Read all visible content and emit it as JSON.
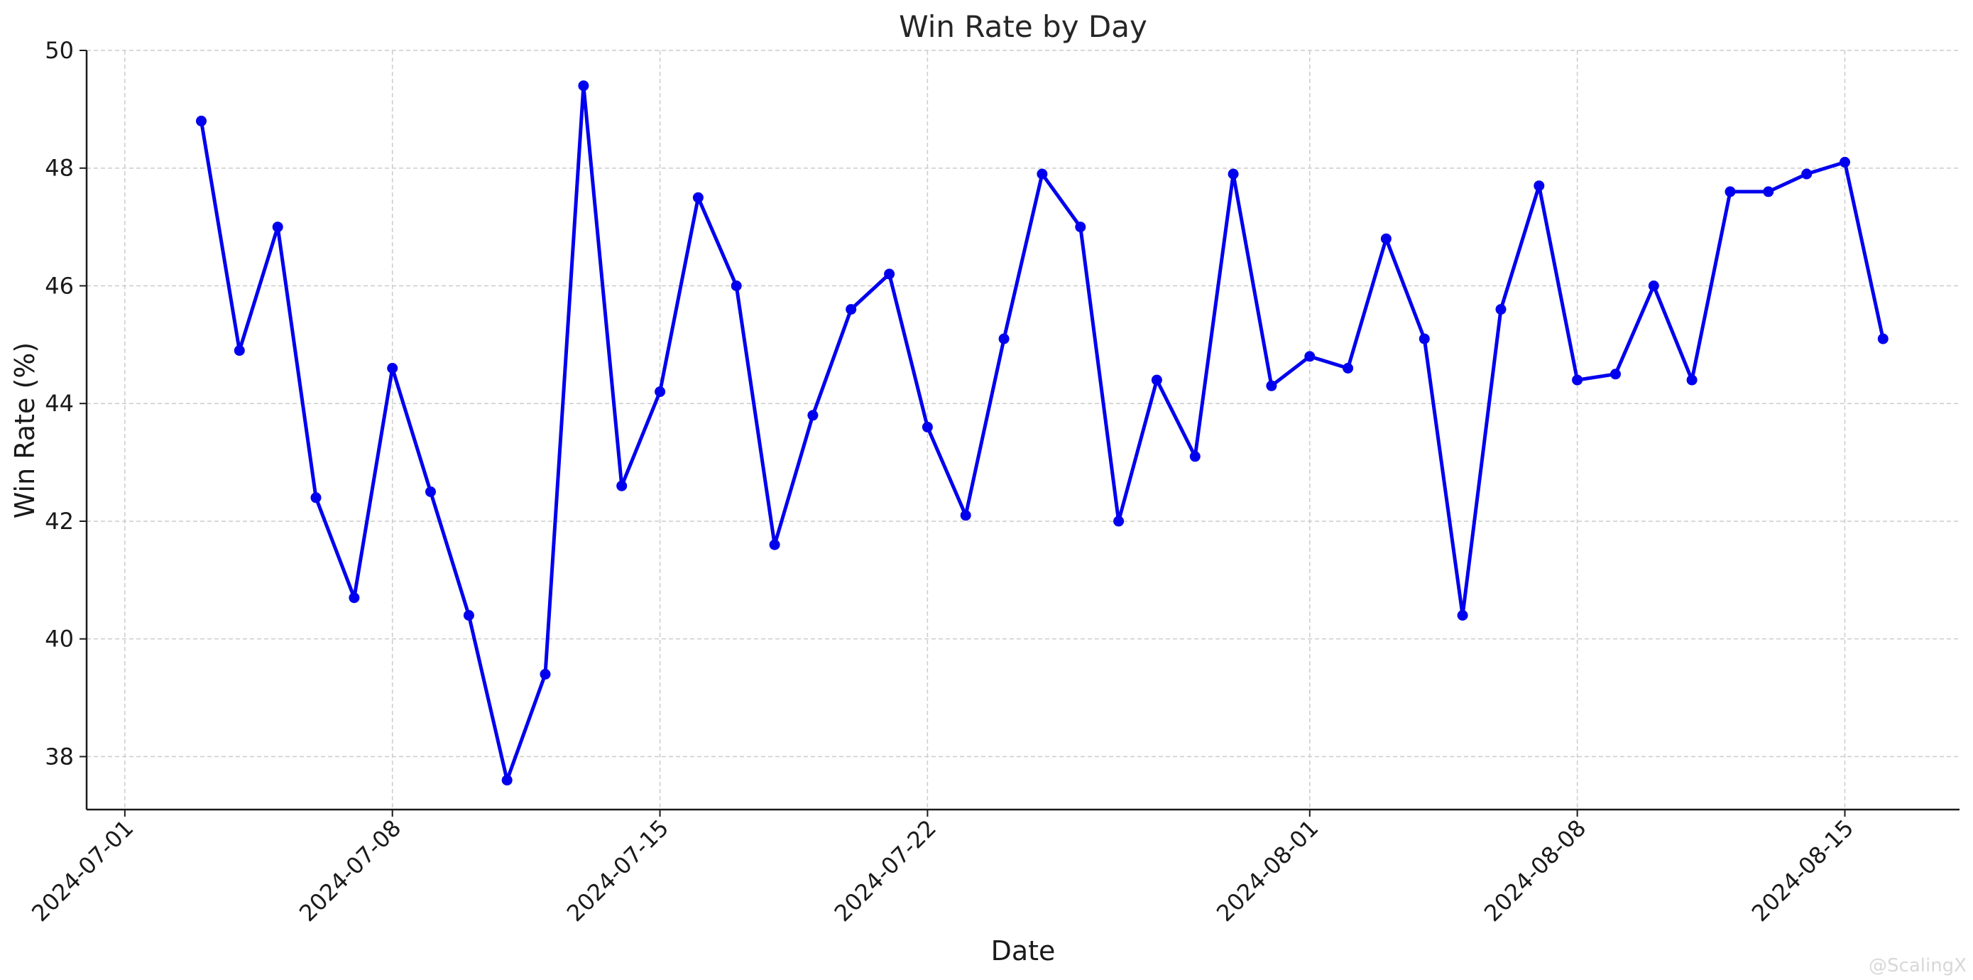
{
  "chart_data": {
    "type": "line",
    "title": "Win Rate by Day",
    "xlabel": "Date",
    "ylabel": "Win Rate (%)",
    "x_ticks": [
      "2024-07-01",
      "2024-07-08",
      "2024-07-15",
      "2024-07-22",
      "2024-08-01",
      "2024-08-08",
      "2024-08-15"
    ],
    "y_ticks": [
      38,
      40,
      42,
      44,
      46,
      48,
      50
    ],
    "xlim": [
      "2024-06-30",
      "2024-08-18"
    ],
    "ylim": [
      37.1,
      50
    ],
    "grid": true,
    "series": [
      {
        "color": "#0000ee",
        "marker": "circle",
        "x": [
          "2024-07-03",
          "2024-07-04",
          "2024-07-05",
          "2024-07-06",
          "2024-07-07",
          "2024-07-08",
          "2024-07-09",
          "2024-07-10",
          "2024-07-11",
          "2024-07-12",
          "2024-07-13",
          "2024-07-14",
          "2024-07-15",
          "2024-07-16",
          "2024-07-17",
          "2024-07-18",
          "2024-07-19",
          "2024-07-20",
          "2024-07-21",
          "2024-07-22",
          "2024-07-23",
          "2024-07-24",
          "2024-07-25",
          "2024-07-26",
          "2024-07-27",
          "2024-07-28",
          "2024-07-29",
          "2024-07-30",
          "2024-07-31",
          "2024-08-01",
          "2024-08-02",
          "2024-08-03",
          "2024-08-04",
          "2024-08-05",
          "2024-08-06",
          "2024-08-07",
          "2024-08-08",
          "2024-08-09",
          "2024-08-10",
          "2024-08-11",
          "2024-08-12",
          "2024-08-13",
          "2024-08-14",
          "2024-08-15",
          "2024-08-16"
        ],
        "values": [
          48.8,
          44.9,
          47.0,
          42.4,
          40.7,
          44.6,
          42.5,
          40.4,
          37.6,
          39.4,
          49.4,
          42.6,
          44.2,
          47.5,
          46.0,
          41.6,
          43.8,
          45.6,
          46.2,
          43.6,
          42.1,
          45.1,
          47.9,
          47.0,
          42.0,
          44.4,
          43.1,
          47.9,
          44.3,
          44.8,
          44.6,
          46.8,
          45.1,
          40.4,
          45.6,
          47.7,
          44.4,
          44.5,
          46.0,
          44.4,
          47.6,
          47.6,
          47.9,
          48.1,
          45.1
        ]
      }
    ]
  },
  "watermark": "@ScalingX"
}
